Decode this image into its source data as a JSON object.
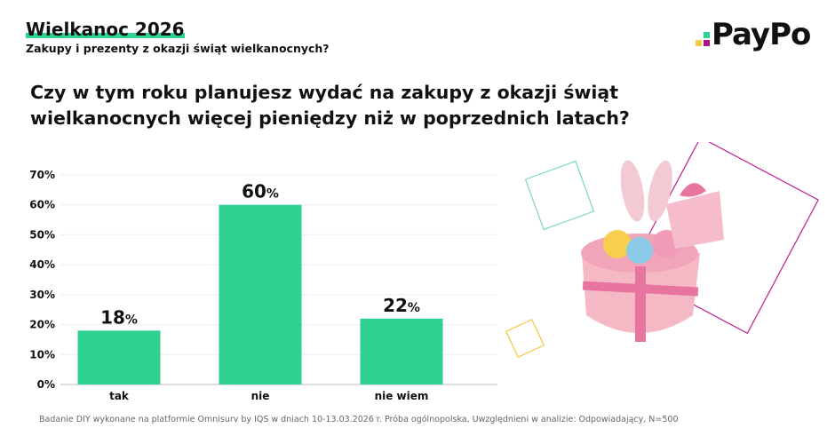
{
  "header": {
    "title": "Wielkanoc 2026",
    "subtitle": "Zakupy i prezenty z okazji świąt wielkanocnych?"
  },
  "brand": {
    "logo_text": "PayPo",
    "colors": {
      "green": "#2ed18f",
      "yellow": "#f7c948",
      "magenta": "#b0147f"
    }
  },
  "question": "Czy w tym roku planujesz wydać na zakupy z okazji świąt wielkanocnych więcej pieniędzy niż w poprzednich latach?",
  "footnote": "Badanie DIY wykonane na platformie Omnisurv by IQS w dniach 10-13.03.2026 r.  Próba ogólnopolska, Uwzględnieni w analizie: Odpowiadający, N=500",
  "chart_data": {
    "type": "bar",
    "categories": [
      "tak",
      "nie",
      "nie wiem"
    ],
    "values": [
      18,
      60,
      22
    ],
    "data_labels": [
      "18",
      "60",
      "22"
    ],
    "data_label_suffix": "%",
    "ylim": [
      0,
      70
    ],
    "yticks": [
      "0%",
      "10%",
      "20%",
      "30%",
      "40%",
      "50%",
      "60%",
      "70%"
    ],
    "grid": true,
    "bar_color": "#2ed18f"
  }
}
